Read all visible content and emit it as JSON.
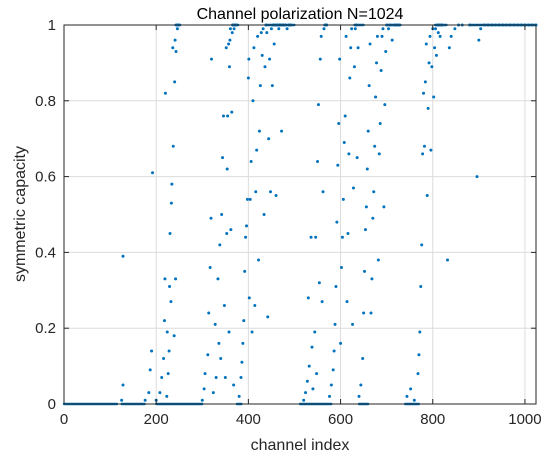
{
  "chart_data": {
    "type": "scatter",
    "title": "Channel polarization N=1024",
    "xlabel": "channel index",
    "ylabel": "symmetric capacity",
    "xlim": [
      0,
      1024
    ],
    "ylim": [
      0,
      1
    ],
    "xticks": [
      0,
      200,
      400,
      600,
      800,
      1000
    ],
    "yticks": [
      0,
      0.2,
      0.4,
      0.6,
      0.8,
      1
    ],
    "xtick_labels": [
      "0",
      "200",
      "400",
      "600",
      "800",
      "1000"
    ],
    "ytick_labels": [
      "0",
      "0.2",
      "0.4",
      "0.6",
      "0.8",
      "1"
    ],
    "grid": true,
    "marker_color": "#0072BD",
    "series": [
      {
        "points": [
          [
            125,
            0.01
          ],
          [
            128,
            0.05
          ],
          [
            128,
            0.39
          ],
          [
            176,
            0.01
          ],
          [
            184,
            0.03
          ],
          [
            187,
            0.09
          ],
          [
            190,
            0.14
          ],
          [
            192,
            0.61
          ],
          [
            200,
            0.01
          ],
          [
            208,
            0.03
          ],
          [
            212,
            0.07
          ],
          [
            216,
            0.12
          ],
          [
            218,
            0.22
          ],
          [
            219,
            0.33
          ],
          [
            220,
            0.82
          ],
          [
            223,
            0.02
          ],
          [
            224,
            0.19
          ],
          [
            226,
            0.08
          ],
          [
            228,
            0.14
          ],
          [
            229,
            0.31
          ],
          [
            230,
            0.45
          ],
          [
            232,
            0.27
          ],
          [
            233,
            0.53
          ],
          [
            234,
            0.58
          ],
          [
            236,
            0.94
          ],
          [
            237,
            0.68
          ],
          [
            239,
            0.18
          ],
          [
            240,
            0.85
          ],
          [
            241,
            0.96
          ],
          [
            242,
            0.33
          ],
          [
            243,
            0.93
          ],
          [
            244,
            1.0
          ],
          [
            246,
            0.99
          ],
          [
            248,
            1.0
          ],
          [
            250,
            1.0
          ],
          [
            300,
            0.01
          ],
          [
            304,
            0.04
          ],
          [
            306,
            0.08
          ],
          [
            312,
            0.13
          ],
          [
            314,
            0.24
          ],
          [
            317,
            0.36
          ],
          [
            319,
            0.49
          ],
          [
            320,
            0.91
          ],
          [
            324,
            0.03
          ],
          [
            328,
            0.21
          ],
          [
            330,
            0.07
          ],
          [
            334,
            0.33
          ],
          [
            336,
            0.16
          ],
          [
            338,
            0.42
          ],
          [
            340,
            0.12
          ],
          [
            342,
            0.5
          ],
          [
            344,
            0.65
          ],
          [
            346,
            0.76
          ],
          [
            348,
            0.26
          ],
          [
            350,
            0.07
          ],
          [
            352,
            0.94
          ],
          [
            353,
            0.45
          ],
          [
            354,
            0.62
          ],
          [
            355,
            0.76
          ],
          [
            357,
            0.95
          ],
          [
            358,
            0.19
          ],
          [
            359,
            0.89
          ],
          [
            360,
            0.96
          ],
          [
            361,
            0.99
          ],
          [
            362,
            0.46
          ],
          [
            364,
            0.77
          ],
          [
            365,
            0.98
          ],
          [
            366,
            1.0
          ],
          [
            368,
            0.05
          ],
          [
            369,
            0.99
          ],
          [
            370,
            1.0
          ],
          [
            372,
            1.0
          ],
          [
            374,
            1.0
          ],
          [
            380,
            0.02
          ],
          [
            384,
            0.07
          ],
          [
            386,
            0.11
          ],
          [
            388,
            0.16
          ],
          [
            390,
            0.22
          ],
          [
            392,
            0.35
          ],
          [
            394,
            0.44
          ],
          [
            396,
            0.47
          ],
          [
            398,
            0.54
          ],
          [
            400,
            0.86
          ],
          [
            401,
            0.91
          ],
          [
            402,
            0.28
          ],
          [
            404,
            0.54
          ],
          [
            406,
            0.64
          ],
          [
            408,
            0.19
          ],
          [
            410,
            0.8
          ],
          [
            412,
            0.94
          ],
          [
            414,
            0.26
          ],
          [
            416,
            0.56
          ],
          [
            418,
            0.67
          ],
          [
            420,
            0.97
          ],
          [
            422,
            0.38
          ],
          [
            424,
            0.72
          ],
          [
            426,
            0.84
          ],
          [
            428,
            0.98
          ],
          [
            430,
            0.92
          ],
          [
            432,
            0.99
          ],
          [
            434,
            0.5
          ],
          [
            436,
            0.89
          ],
          [
            438,
            1.0
          ],
          [
            440,
            0.98
          ],
          [
            442,
            0.23
          ],
          [
            444,
            0.7
          ],
          [
            446,
            0.91
          ],
          [
            448,
            0.56
          ],
          [
            450,
            0.99
          ],
          [
            452,
            0.84
          ],
          [
            454,
            1.0
          ],
          [
            456,
            0.95
          ],
          [
            458,
            1.0
          ],
          [
            460,
            0.55
          ],
          [
            462,
            1.0
          ],
          [
            464,
            1.0
          ],
          [
            466,
            0.99
          ],
          [
            468,
            1.0
          ],
          [
            470,
            1.0
          ],
          [
            472,
            0.72
          ],
          [
            474,
            1.0
          ],
          [
            476,
            1.0
          ],
          [
            480,
            1.0
          ],
          [
            484,
            0.99
          ],
          [
            488,
            1.0
          ],
          [
            490,
            1.0
          ],
          [
            492,
            1.0
          ],
          [
            520,
            0.01
          ],
          [
            524,
            0.03
          ],
          [
            528,
            0.06
          ],
          [
            530,
            0.28
          ],
          [
            532,
            0.1
          ],
          [
            536,
            0.44
          ],
          [
            538,
            0.15
          ],
          [
            540,
            0.04
          ],
          [
            544,
            0.19
          ],
          [
            546,
            0.44
          ],
          [
            548,
            0.08
          ],
          [
            550,
            0.64
          ],
          [
            552,
            0.79
          ],
          [
            554,
            0.32
          ],
          [
            556,
            0.91
          ],
          [
            558,
            0.97
          ],
          [
            560,
            0.27
          ],
          [
            562,
            0.56
          ],
          [
            564,
            0.99
          ],
          [
            566,
            1.0
          ],
          [
            568,
            1.0
          ],
          [
            570,
            1.0
          ],
          [
            576,
            0.02
          ],
          [
            580,
            0.05
          ],
          [
            584,
            0.09
          ],
          [
            586,
            0.14
          ],
          [
            588,
            0.21
          ],
          [
            590,
            0.31
          ],
          [
            592,
            0.48
          ],
          [
            594,
            0.63
          ],
          [
            596,
            0.74
          ],
          [
            598,
            0.91
          ],
          [
            600,
            0.16
          ],
          [
            602,
            0.36
          ],
          [
            604,
            0.44
          ],
          [
            606,
            0.54
          ],
          [
            608,
            0.69
          ],
          [
            610,
            0.76
          ],
          [
            612,
            0.97
          ],
          [
            614,
            0.27
          ],
          [
            616,
            0.45
          ],
          [
            618,
            0.66
          ],
          [
            620,
            0.86
          ],
          [
            622,
            0.94
          ],
          [
            624,
            0.99
          ],
          [
            626,
            0.21
          ],
          [
            628,
            0.57
          ],
          [
            630,
            0.89
          ],
          [
            632,
            0.99
          ],
          [
            634,
            1.0
          ],
          [
            636,
            0.65
          ],
          [
            638,
            0.94
          ],
          [
            640,
            0.02
          ],
          [
            644,
            0.05
          ],
          [
            648,
            0.12
          ],
          [
            650,
            0.24
          ],
          [
            652,
            0.35
          ],
          [
            654,
            0.46
          ],
          [
            656,
            0.52
          ],
          [
            658,
            0.62
          ],
          [
            660,
            0.72
          ],
          [
            662,
            0.84
          ],
          [
            664,
            0.95
          ],
          [
            666,
            0.24
          ],
          [
            668,
            0.33
          ],
          [
            670,
            0.49
          ],
          [
            672,
            0.56
          ],
          [
            674,
            0.68
          ],
          [
            676,
            0.81
          ],
          [
            678,
            0.9
          ],
          [
            680,
            0.97
          ],
          [
            682,
            0.38
          ],
          [
            684,
            0.66
          ],
          [
            686,
            0.74
          ],
          [
            688,
            0.88
          ],
          [
            690,
            0.97
          ],
          [
            692,
            0.99
          ],
          [
            694,
            0.52
          ],
          [
            696,
            0.79
          ],
          [
            698,
            0.93
          ],
          [
            700,
            1.0
          ],
          [
            704,
            0.99
          ],
          [
            708,
            1.0
          ],
          [
            712,
            0.96
          ],
          [
            716,
            1.0
          ],
          [
            720,
            1.0
          ],
          [
            724,
            1.0
          ],
          [
            728,
            1.0
          ],
          [
            744,
            0.02
          ],
          [
            752,
            0.04
          ],
          [
            760,
            0.01
          ],
          [
            768,
            0.08
          ],
          [
            770,
            0.13
          ],
          [
            772,
            0.19
          ],
          [
            774,
            0.31
          ],
          [
            776,
            0.42
          ],
          [
            778,
            0.66
          ],
          [
            780,
            0.82
          ],
          [
            782,
            0.68
          ],
          [
            784,
            0.85
          ],
          [
            786,
            0.95
          ],
          [
            788,
            0.55
          ],
          [
            790,
            0.78
          ],
          [
            792,
            0.9
          ],
          [
            794,
            0.97
          ],
          [
            796,
            0.67
          ],
          [
            798,
            0.89
          ],
          [
            800,
            0.99
          ],
          [
            802,
            0.81
          ],
          [
            804,
            0.94
          ],
          [
            806,
            0.99
          ],
          [
            808,
            0.92
          ],
          [
            810,
            1.0
          ],
          [
            812,
            0.98
          ],
          [
            814,
            1.0
          ],
          [
            816,
            0.97
          ],
          [
            818,
            1.0
          ],
          [
            820,
            1.0
          ],
          [
            832,
            0.38
          ],
          [
            836,
            0.94
          ],
          [
            840,
            0.97
          ],
          [
            848,
            0.99
          ],
          [
            856,
            1.0
          ],
          [
            864,
            1.0
          ],
          [
            880,
            1.0
          ],
          [
            896,
            0.6
          ],
          [
            900,
            0.96
          ],
          [
            904,
            0.99
          ],
          [
            912,
            1.0
          ],
          [
            920,
            1.0
          ],
          [
            928,
            1.0
          ],
          [
            936,
            1.0
          ],
          [
            944,
            1.0
          ],
          [
            952,
            1.0
          ],
          [
            960,
            1.0
          ],
          [
            968,
            1.0
          ],
          [
            976,
            1.0
          ],
          [
            984,
            1.0
          ],
          [
            992,
            1.0
          ],
          [
            1000,
            1.0
          ],
          [
            1008,
            1.0
          ],
          [
            1016,
            1.0
          ],
          [
            1024,
            1.0
          ]
        ]
      }
    ]
  }
}
